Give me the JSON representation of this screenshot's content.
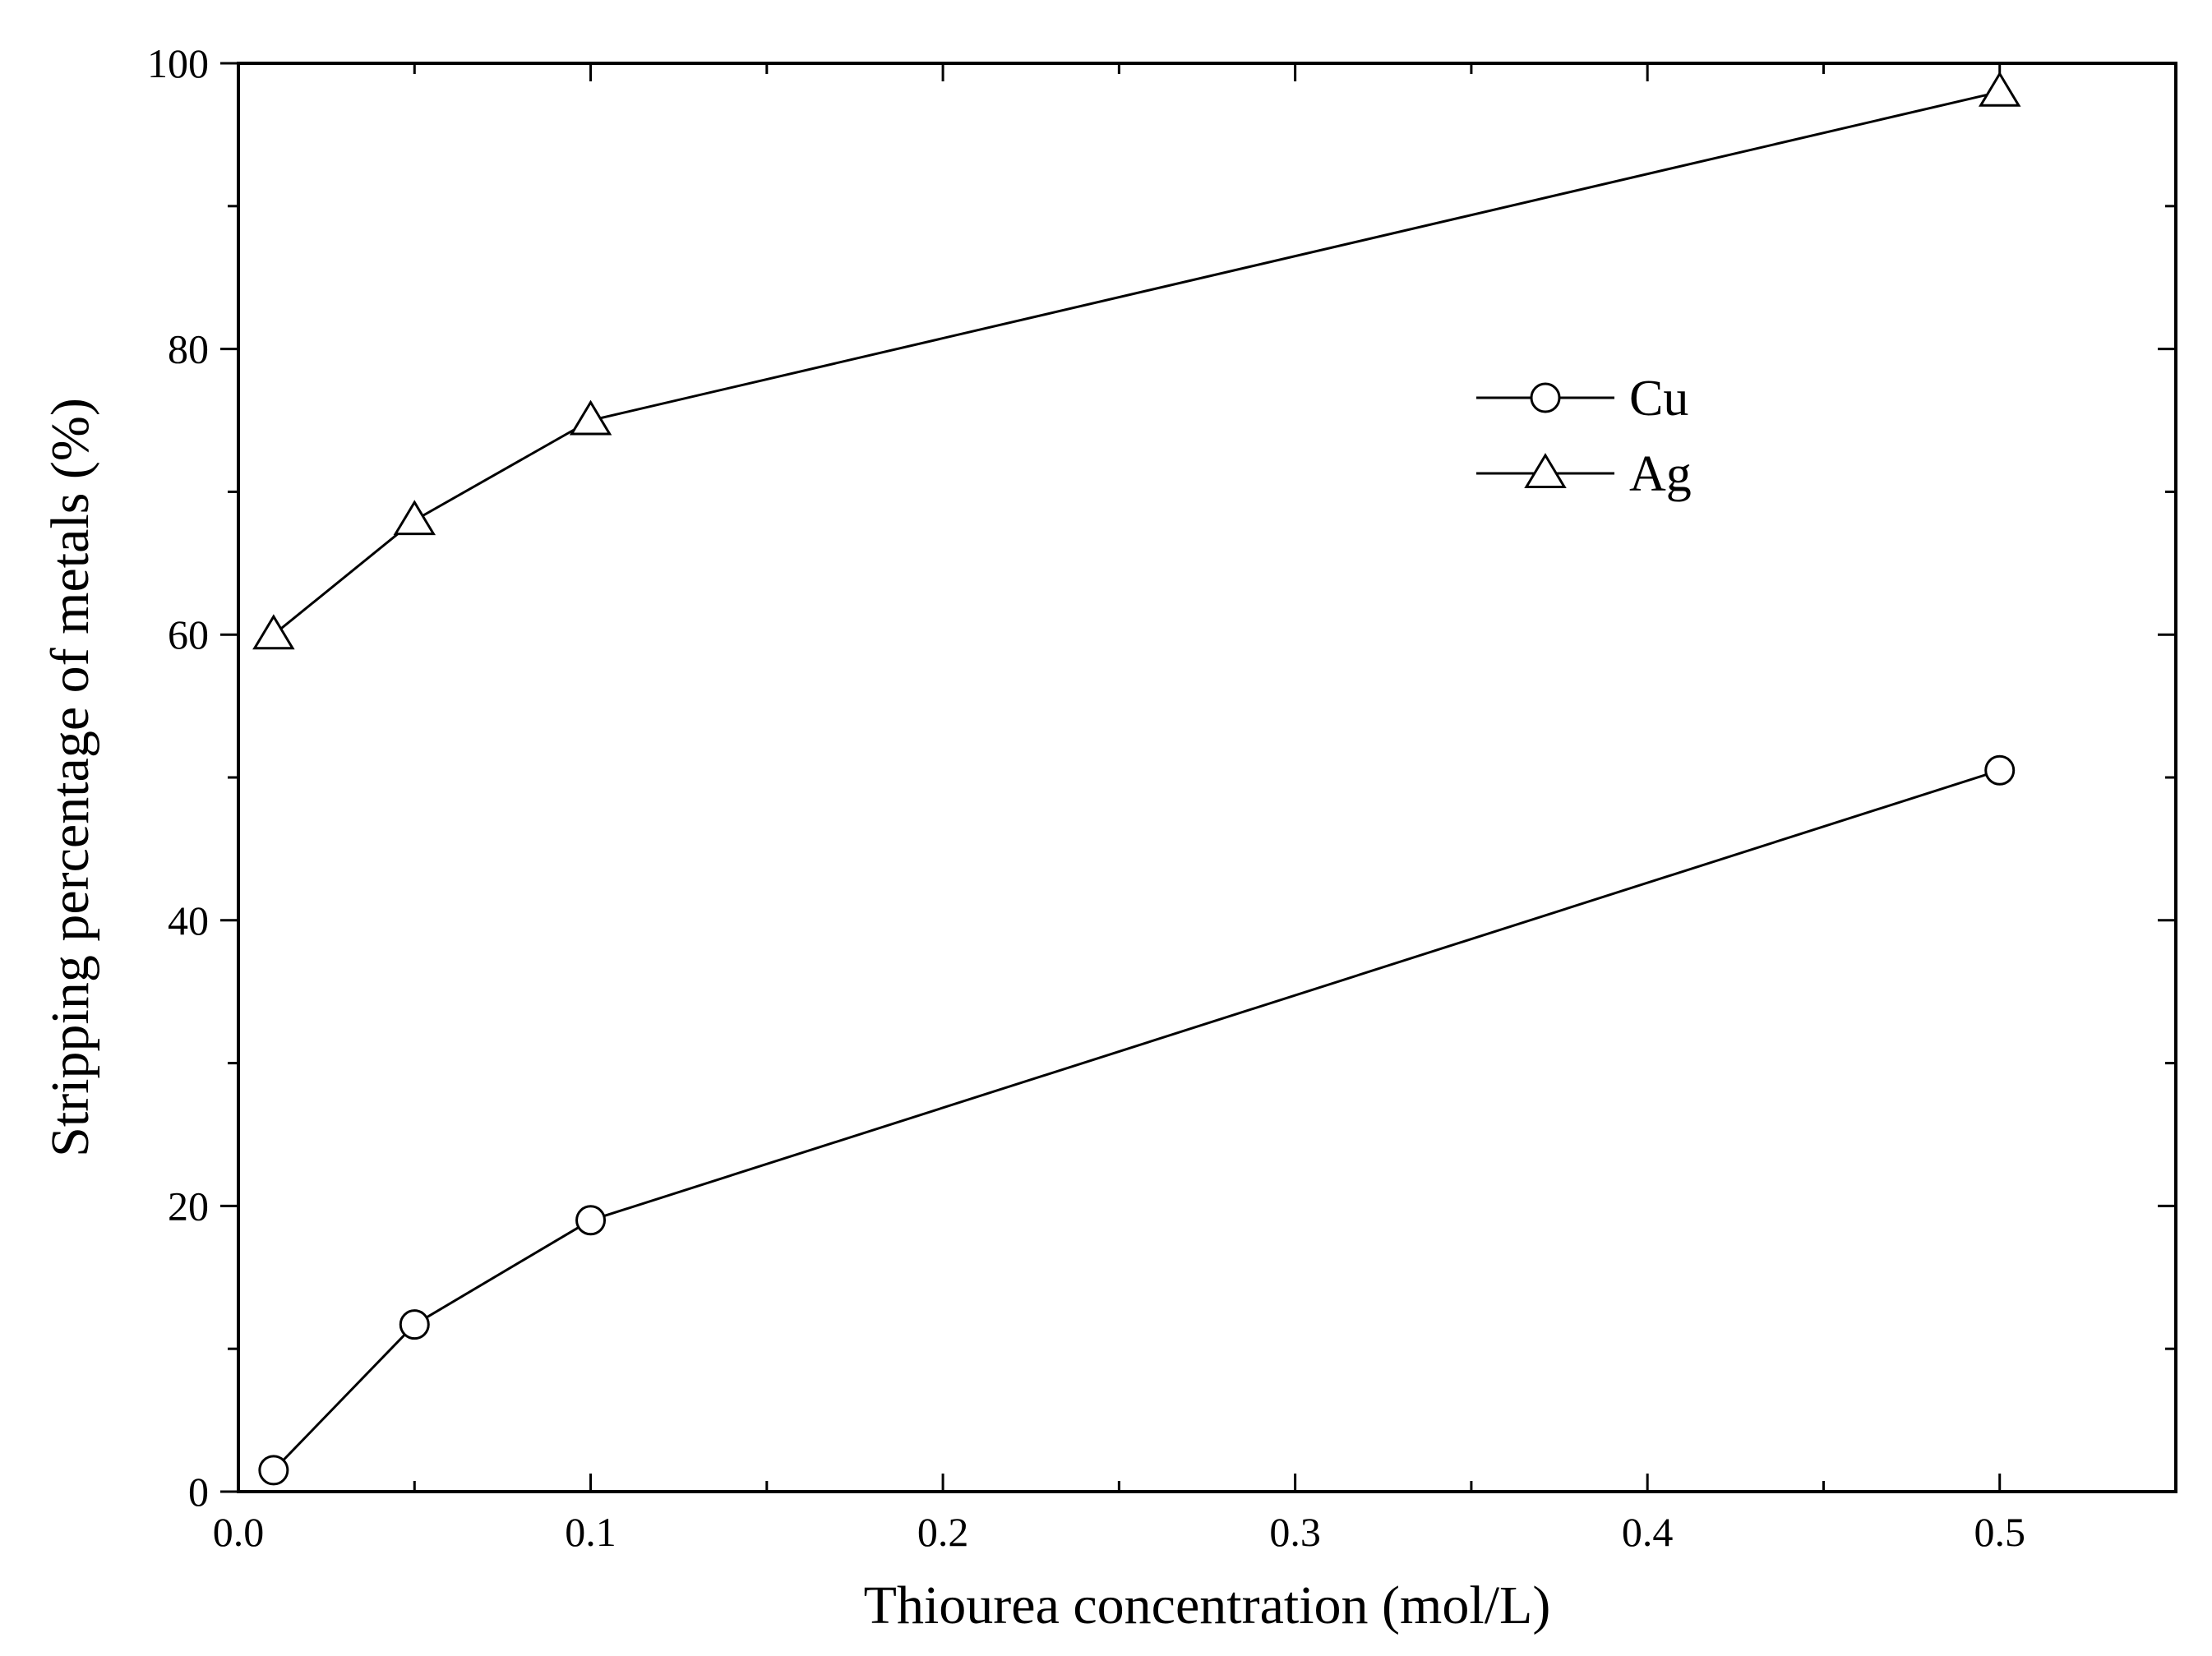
{
  "chart_data": {
    "type": "line",
    "title": "",
    "xlabel": "Thiourea concentration (mol/L)",
    "ylabel": "Stripping percentage of metals (%)",
    "xlim": [
      0.0,
      0.55
    ],
    "ylim": [
      0,
      100
    ],
    "x_major_ticks": [
      0.0,
      0.1,
      0.2,
      0.3,
      0.4,
      0.5
    ],
    "x_tick_labels": [
      "0.0",
      "0.1",
      "0.2",
      "0.3",
      "0.4",
      "0.5"
    ],
    "x_minor_ticks": [
      0.05,
      0.15,
      0.25,
      0.35,
      0.45
    ],
    "y_major_ticks": [
      0,
      20,
      40,
      60,
      80,
      100
    ],
    "y_tick_labels": [
      "0",
      "20",
      "40",
      "60",
      "80",
      "100"
    ],
    "y_minor_ticks": [
      10,
      30,
      50,
      70,
      90
    ],
    "grid": false,
    "legend_position": "upper-right",
    "series": [
      {
        "name": "Cu",
        "marker": "circle",
        "color": "#000000",
        "x": [
          0.01,
          0.05,
          0.1,
          0.5
        ],
        "y": [
          1.5,
          11.7,
          19.0,
          50.5
        ]
      },
      {
        "name": "Ag",
        "marker": "triangle",
        "color": "#000000",
        "x": [
          0.01,
          0.05,
          0.1,
          0.5
        ],
        "y": [
          60.0,
          68.0,
          75.0,
          98.0
        ]
      }
    ]
  }
}
